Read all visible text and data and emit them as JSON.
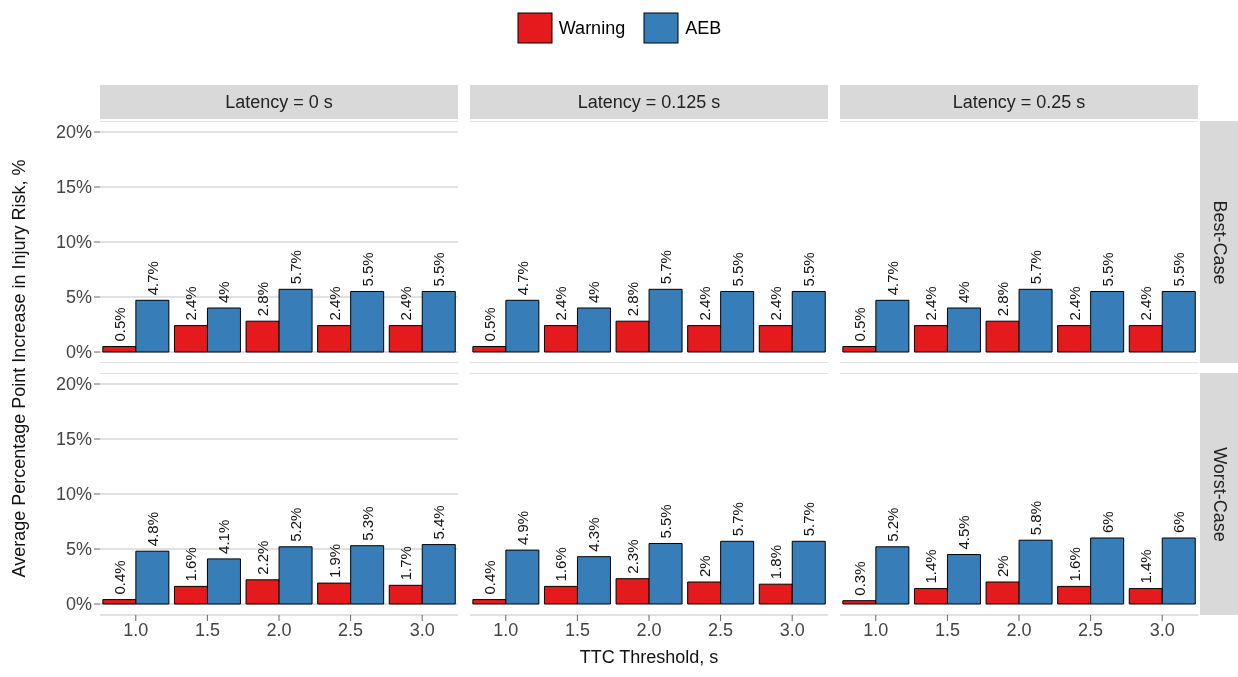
{
  "chart_data": [
    {
      "type": "bar",
      "title": "Latency = 0 s",
      "ylabel": "Average Percentage Point Increase in Injury Risk, %",
      "legend": "top",
      "grid": "y",
      "tick_labels": "y",
      "categories": [
        "1.0",
        "1.5",
        "2.0",
        "2.5",
        "3.0"
      ],
      "ylim": [
        -1,
        21
      ],
      "yticks": [
        {
          "value": 0,
          "label": "0%"
        },
        {
          "value": 5,
          "label": "5%"
        },
        {
          "value": 10,
          "label": "10%"
        },
        {
          "value": 15,
          "label": "15%"
        },
        {
          "value": 20,
          "label": "20%"
        }
      ],
      "series": [
        {
          "name": "Warning",
          "color": "#e41a1c",
          "values": [
            0.5,
            2.4,
            2.8,
            2.4,
            2.4
          ],
          "value_labels": [
            "0.5%",
            "2.4%",
            "2.8%",
            "2.4%",
            "2.4%"
          ]
        },
        {
          "name": "AEB",
          "color": "#377eb8",
          "values": [
            4.7,
            4,
            5.7,
            5.5,
            5.5
          ],
          "value_labels": [
            "4.7%",
            "4%",
            "5.7%",
            "5.5%",
            "5.5%"
          ]
        }
      ]
    },
    {
      "type": "bar",
      "title": "Latency = 0.125 s",
      "grid": "y",
      "tick_labels": false,
      "categories": [
        "1.0",
        "1.5",
        "2.0",
        "2.5",
        "3.0"
      ],
      "ylim": [
        -1,
        21
      ],
      "yticks": [
        {
          "value": 0,
          "label": null
        },
        {
          "value": 5,
          "label": null
        },
        {
          "value": 10,
          "label": null
        },
        {
          "value": 15,
          "label": null
        },
        {
          "value": 20,
          "label": null
        }
      ],
      "series": [
        {
          "color": "#e41a1c",
          "values": [
            0.5,
            2.4,
            2.8,
            2.4,
            2.4
          ],
          "value_labels": [
            "0.5%",
            "2.4%",
            "2.8%",
            "2.4%",
            "2.4%"
          ]
        },
        {
          "color": "#377eb8",
          "values": [
            4.7,
            4,
            5.7,
            5.5,
            5.5
          ],
          "value_labels": [
            "4.7%",
            "4%",
            "5.7%",
            "5.5%",
            "5.5%"
          ]
        }
      ]
    },
    {
      "type": "bar",
      "title": "Latency = 0.25 s",
      "annotations": [
        "Best-Case"
      ],
      "grid": "y",
      "tick_labels": false,
      "categories": [
        "1.0",
        "1.5",
        "2.0",
        "2.5",
        "3.0"
      ],
      "ylim": [
        -1,
        21
      ],
      "yticks": [
        {
          "value": 0,
          "label": null
        },
        {
          "value": 5,
          "label": null
        },
        {
          "value": 10,
          "label": null
        },
        {
          "value": 15,
          "label": null
        },
        {
          "value": 20,
          "label": null
        }
      ],
      "series": [
        {
          "color": "#e41a1c",
          "values": [
            0.5,
            2.4,
            2.8,
            2.4,
            2.4
          ],
          "value_labels": [
            "0.5%",
            "2.4%",
            "2.8%",
            "2.4%",
            "2.4%"
          ]
        },
        {
          "color": "#377eb8",
          "values": [
            4.7,
            4,
            5.7,
            5.5,
            5.5
          ],
          "value_labels": [
            "4.7%",
            "4%",
            "5.7%",
            "5.5%",
            "5.5%"
          ]
        }
      ]
    },
    {
      "type": "bar",
      "grid": "y",
      "categories": [
        "1.0",
        "1.5",
        "2.0",
        "2.5",
        "3.0"
      ],
      "ylim": [
        -1,
        21
      ],
      "yticks": [
        {
          "value": 0,
          "label": "0%"
        },
        {
          "value": 5,
          "label": "5%"
        },
        {
          "value": 10,
          "label": "10%"
        },
        {
          "value": 15,
          "label": "15%"
        },
        {
          "value": 20,
          "label": "20%"
        }
      ],
      "series": [
        {
          "color": "#e41a1c",
          "values": [
            0.4,
            1.6,
            2.2,
            1.9,
            1.7
          ],
          "value_labels": [
            "0.4%",
            "1.6%",
            "2.2%",
            "1.9%",
            "1.7%"
          ]
        },
        {
          "color": "#377eb8",
          "values": [
            4.8,
            4.1,
            5.2,
            5.3,
            5.4
          ],
          "value_labels": [
            "4.8%",
            "4.1%",
            "5.2%",
            "5.3%",
            "5.4%"
          ]
        }
      ]
    },
    {
      "type": "bar",
      "xlabel": "TTC Threshold, s",
      "grid": "y",
      "tick_labels": "x",
      "categories": [
        "1.0",
        "1.5",
        "2.0",
        "2.5",
        "3.0"
      ],
      "ylim": [
        -1,
        21
      ],
      "yticks": [
        {
          "value": 0,
          "label": null
        },
        {
          "value": 5,
          "label": null
        },
        {
          "value": 10,
          "label": null
        },
        {
          "value": 15,
          "label": null
        },
        {
          "value": 20,
          "label": null
        }
      ],
      "series": [
        {
          "color": "#e41a1c",
          "values": [
            0.4,
            1.6,
            2.3,
            2,
            1.8
          ],
          "value_labels": [
            "0.4%",
            "1.6%",
            "2.3%",
            "2%",
            "1.8%"
          ]
        },
        {
          "color": "#377eb8",
          "values": [
            4.9,
            4.3,
            5.5,
            5.7,
            5.7
          ],
          "value_labels": [
            "4.9%",
            "4.3%",
            "5.5%",
            "5.7%",
            "5.7%"
          ]
        }
      ]
    },
    {
      "type": "bar",
      "annotations": [
        "Worst-Case"
      ],
      "grid": "y",
      "tick_labels": "x",
      "categories": [
        "1.0",
        "1.5",
        "2.0",
        "2.5",
        "3.0"
      ],
      "ylim": [
        -1,
        21
      ],
      "yticks": [
        {
          "value": 0,
          "label": null
        },
        {
          "value": 5,
          "label": null
        },
        {
          "value": 10,
          "label": null
        },
        {
          "value": 15,
          "label": null
        },
        {
          "value": 20,
          "label": null
        }
      ],
      "series": [
        {
          "color": "#e41a1c",
          "values": [
            0.3,
            1.4,
            2,
            1.6,
            1.4
          ],
          "value_labels": [
            "0.3%",
            "1.4%",
            "2%",
            "1.6%",
            "1.4%"
          ]
        },
        {
          "color": "#377eb8",
          "values": [
            5.2,
            4.5,
            5.8,
            6,
            6
          ],
          "value_labels": [
            "5.2%",
            "4.5%",
            "5.8%",
            "6%",
            "6%"
          ]
        }
      ]
    }
  ]
}
